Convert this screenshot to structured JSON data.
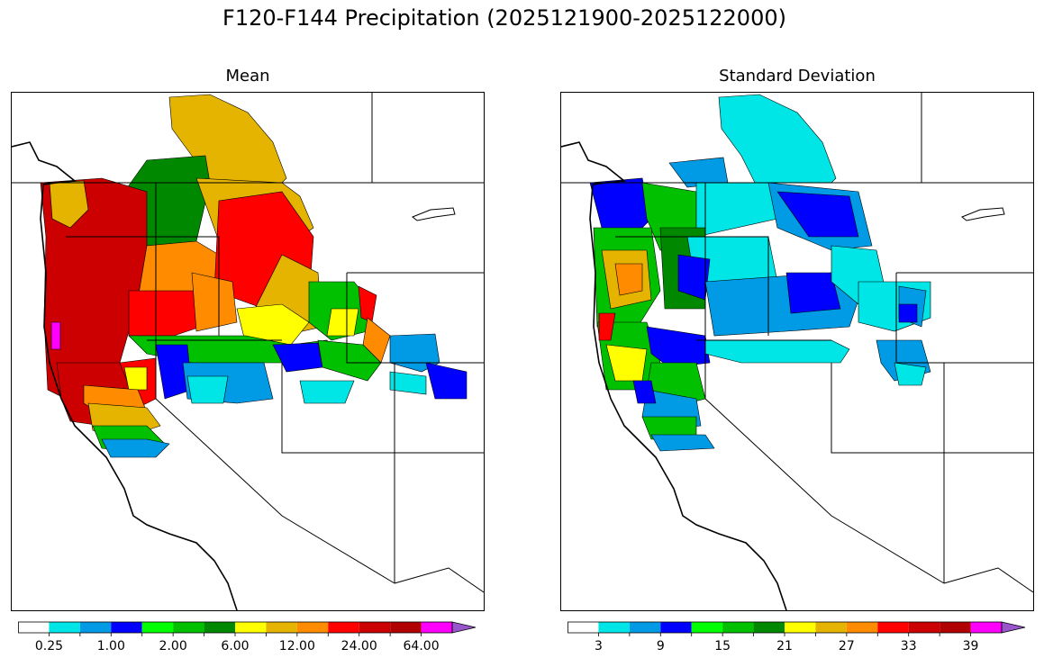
{
  "title": "F120-F144 Precipitation (2025121900-2025122000)",
  "panels": [
    {
      "title": "Mean",
      "colorbar": {
        "colors": [
          "#ffffff",
          "#00e5e5",
          "#009ae5",
          "#0000ff",
          "#00ff00",
          "#00c000",
          "#008800",
          "#ffff00",
          "#e5b400",
          "#ff8c00",
          "#ff0000",
          "#cc0000",
          "#b00000",
          "#ff00ff",
          "#9955cc"
        ],
        "tick_labels": [
          "0.25",
          "1.00",
          "2.00",
          "6.00",
          "12.00",
          "24.00",
          "64.00"
        ],
        "tick_boundaries": [
          1,
          3,
          5,
          7,
          9,
          11,
          13
        ],
        "extend": "max"
      }
    },
    {
      "title": "Standard Deviation",
      "colorbar": {
        "colors": [
          "#ffffff",
          "#00e5e5",
          "#009ae5",
          "#0000ff",
          "#00ff00",
          "#00c000",
          "#008800",
          "#ffff00",
          "#e5b400",
          "#ff8c00",
          "#ff0000",
          "#cc0000",
          "#b00000",
          "#ff00ff",
          "#9955cc"
        ],
        "tick_labels": [
          "3",
          "9",
          "15",
          "21",
          "27",
          "33",
          "39"
        ],
        "tick_boundaries": [
          1,
          3,
          5,
          7,
          9,
          11,
          13
        ],
        "extend": "max"
      }
    }
  ]
}
